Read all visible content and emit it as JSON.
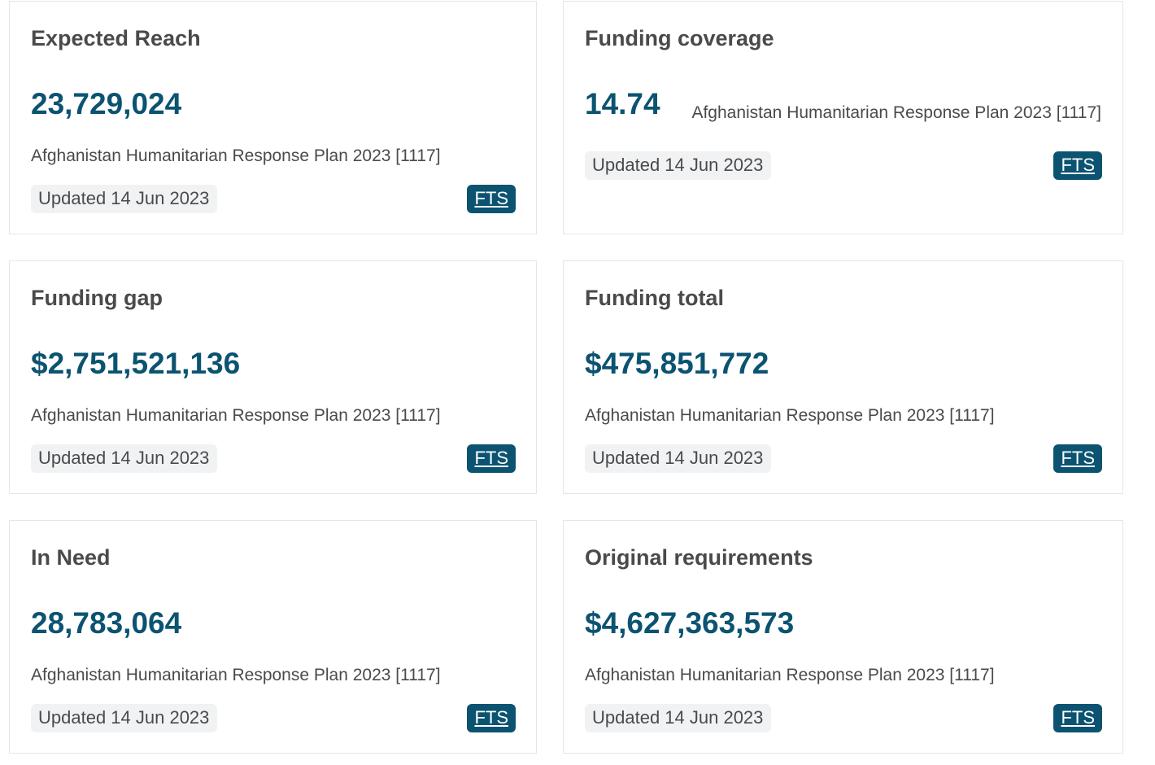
{
  "cards": [
    {
      "title": "Expected Reach",
      "value": "23,729,024",
      "plan": "Afghanistan Humanitarian Response Plan 2023 [1117]",
      "updated": "Updated 14 Jun 2023",
      "source": "FTS"
    },
    {
      "title": "Funding coverage",
      "value": "14.74",
      "plan": "Afghanistan Humanitarian Response Plan 2023 [1117]",
      "updated": "Updated 14 Jun 2023",
      "source": "FTS"
    },
    {
      "title": "Funding gap",
      "value": "$2,751,521,136",
      "plan": "Afghanistan Humanitarian Response Plan 2023 [1117]",
      "updated": "Updated 14 Jun 2023",
      "source": "FTS"
    },
    {
      "title": "Funding total",
      "value": "$475,851,772",
      "plan": "Afghanistan Humanitarian Response Plan 2023 [1117]",
      "updated": "Updated 14 Jun 2023",
      "source": "FTS"
    },
    {
      "title": "In Need",
      "value": "28,783,064",
      "plan": "Afghanistan Humanitarian Response Plan 2023 [1117]",
      "updated": "Updated 14 Jun 2023",
      "source": "FTS"
    },
    {
      "title": "Original requirements",
      "value": "$4,627,363,573",
      "plan": "Afghanistan Humanitarian Response Plan 2023 [1117]",
      "updated": "Updated 14 Jun 2023",
      "source": "FTS"
    }
  ],
  "colors": {
    "accent": "#0b5371",
    "title_text": "#4a4a4a",
    "badge_bg": "#f1f2f4",
    "border": "#e6e6e6"
  }
}
